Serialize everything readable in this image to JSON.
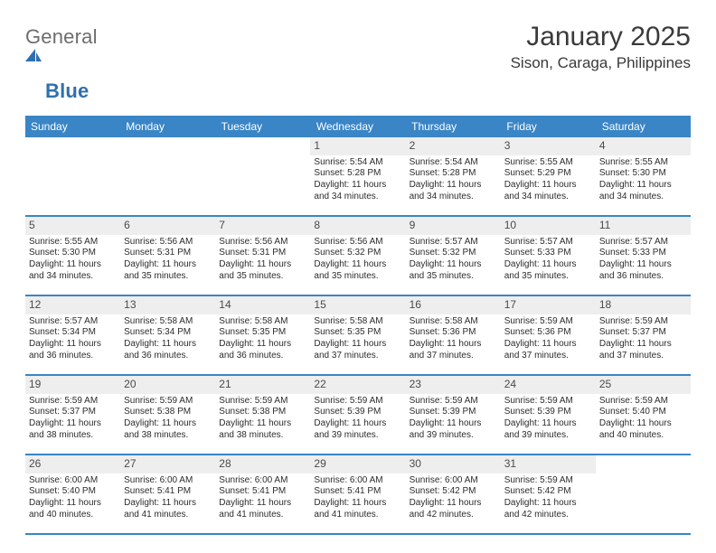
{
  "colors": {
    "header_bg": "#3a85c6",
    "header_text": "#ffffff",
    "daynum_bg": "#eeeeee",
    "daynum_text": "#4a4a4a",
    "body_text": "#2c2c2c",
    "week_divider": "#3a85c6",
    "page_bg": "#ffffff",
    "logo_gray": "#6d6d6d",
    "logo_blue": "#2f6fb0",
    "title_color": "#3a3a3a"
  },
  "logo": {
    "word1": "General",
    "word2": "Blue"
  },
  "title": "January 2025",
  "location": "Sison, Caraga, Philippines",
  "dow": [
    "Sunday",
    "Monday",
    "Tuesday",
    "Wednesday",
    "Thursday",
    "Friday",
    "Saturday"
  ],
  "weeks": [
    [
      null,
      null,
      null,
      {
        "n": "1",
        "sunrise": "5:54 AM",
        "sunset": "5:28 PM",
        "daylight": "11 hours and 34 minutes."
      },
      {
        "n": "2",
        "sunrise": "5:54 AM",
        "sunset": "5:28 PM",
        "daylight": "11 hours and 34 minutes."
      },
      {
        "n": "3",
        "sunrise": "5:55 AM",
        "sunset": "5:29 PM",
        "daylight": "11 hours and 34 minutes."
      },
      {
        "n": "4",
        "sunrise": "5:55 AM",
        "sunset": "5:30 PM",
        "daylight": "11 hours and 34 minutes."
      }
    ],
    [
      {
        "n": "5",
        "sunrise": "5:55 AM",
        "sunset": "5:30 PM",
        "daylight": "11 hours and 34 minutes."
      },
      {
        "n": "6",
        "sunrise": "5:56 AM",
        "sunset": "5:31 PM",
        "daylight": "11 hours and 35 minutes."
      },
      {
        "n": "7",
        "sunrise": "5:56 AM",
        "sunset": "5:31 PM",
        "daylight": "11 hours and 35 minutes."
      },
      {
        "n": "8",
        "sunrise": "5:56 AM",
        "sunset": "5:32 PM",
        "daylight": "11 hours and 35 minutes."
      },
      {
        "n": "9",
        "sunrise": "5:57 AM",
        "sunset": "5:32 PM",
        "daylight": "11 hours and 35 minutes."
      },
      {
        "n": "10",
        "sunrise": "5:57 AM",
        "sunset": "5:33 PM",
        "daylight": "11 hours and 35 minutes."
      },
      {
        "n": "11",
        "sunrise": "5:57 AM",
        "sunset": "5:33 PM",
        "daylight": "11 hours and 36 minutes."
      }
    ],
    [
      {
        "n": "12",
        "sunrise": "5:57 AM",
        "sunset": "5:34 PM",
        "daylight": "11 hours and 36 minutes."
      },
      {
        "n": "13",
        "sunrise": "5:58 AM",
        "sunset": "5:34 PM",
        "daylight": "11 hours and 36 minutes."
      },
      {
        "n": "14",
        "sunrise": "5:58 AM",
        "sunset": "5:35 PM",
        "daylight": "11 hours and 36 minutes."
      },
      {
        "n": "15",
        "sunrise": "5:58 AM",
        "sunset": "5:35 PM",
        "daylight": "11 hours and 37 minutes."
      },
      {
        "n": "16",
        "sunrise": "5:58 AM",
        "sunset": "5:36 PM",
        "daylight": "11 hours and 37 minutes."
      },
      {
        "n": "17",
        "sunrise": "5:59 AM",
        "sunset": "5:36 PM",
        "daylight": "11 hours and 37 minutes."
      },
      {
        "n": "18",
        "sunrise": "5:59 AM",
        "sunset": "5:37 PM",
        "daylight": "11 hours and 37 minutes."
      }
    ],
    [
      {
        "n": "19",
        "sunrise": "5:59 AM",
        "sunset": "5:37 PM",
        "daylight": "11 hours and 38 minutes."
      },
      {
        "n": "20",
        "sunrise": "5:59 AM",
        "sunset": "5:38 PM",
        "daylight": "11 hours and 38 minutes."
      },
      {
        "n": "21",
        "sunrise": "5:59 AM",
        "sunset": "5:38 PM",
        "daylight": "11 hours and 38 minutes."
      },
      {
        "n": "22",
        "sunrise": "5:59 AM",
        "sunset": "5:39 PM",
        "daylight": "11 hours and 39 minutes."
      },
      {
        "n": "23",
        "sunrise": "5:59 AM",
        "sunset": "5:39 PM",
        "daylight": "11 hours and 39 minutes."
      },
      {
        "n": "24",
        "sunrise": "5:59 AM",
        "sunset": "5:39 PM",
        "daylight": "11 hours and 39 minutes."
      },
      {
        "n": "25",
        "sunrise": "5:59 AM",
        "sunset": "5:40 PM",
        "daylight": "11 hours and 40 minutes."
      }
    ],
    [
      {
        "n": "26",
        "sunrise": "6:00 AM",
        "sunset": "5:40 PM",
        "daylight": "11 hours and 40 minutes."
      },
      {
        "n": "27",
        "sunrise": "6:00 AM",
        "sunset": "5:41 PM",
        "daylight": "11 hours and 41 minutes."
      },
      {
        "n": "28",
        "sunrise": "6:00 AM",
        "sunset": "5:41 PM",
        "daylight": "11 hours and 41 minutes."
      },
      {
        "n": "29",
        "sunrise": "6:00 AM",
        "sunset": "5:41 PM",
        "daylight": "11 hours and 41 minutes."
      },
      {
        "n": "30",
        "sunrise": "6:00 AM",
        "sunset": "5:42 PM",
        "daylight": "11 hours and 42 minutes."
      },
      {
        "n": "31",
        "sunrise": "5:59 AM",
        "sunset": "5:42 PM",
        "daylight": "11 hours and 42 minutes."
      },
      null
    ]
  ],
  "labels": {
    "sunrise": "Sunrise:",
    "sunset": "Sunset:",
    "daylight": "Daylight:"
  }
}
